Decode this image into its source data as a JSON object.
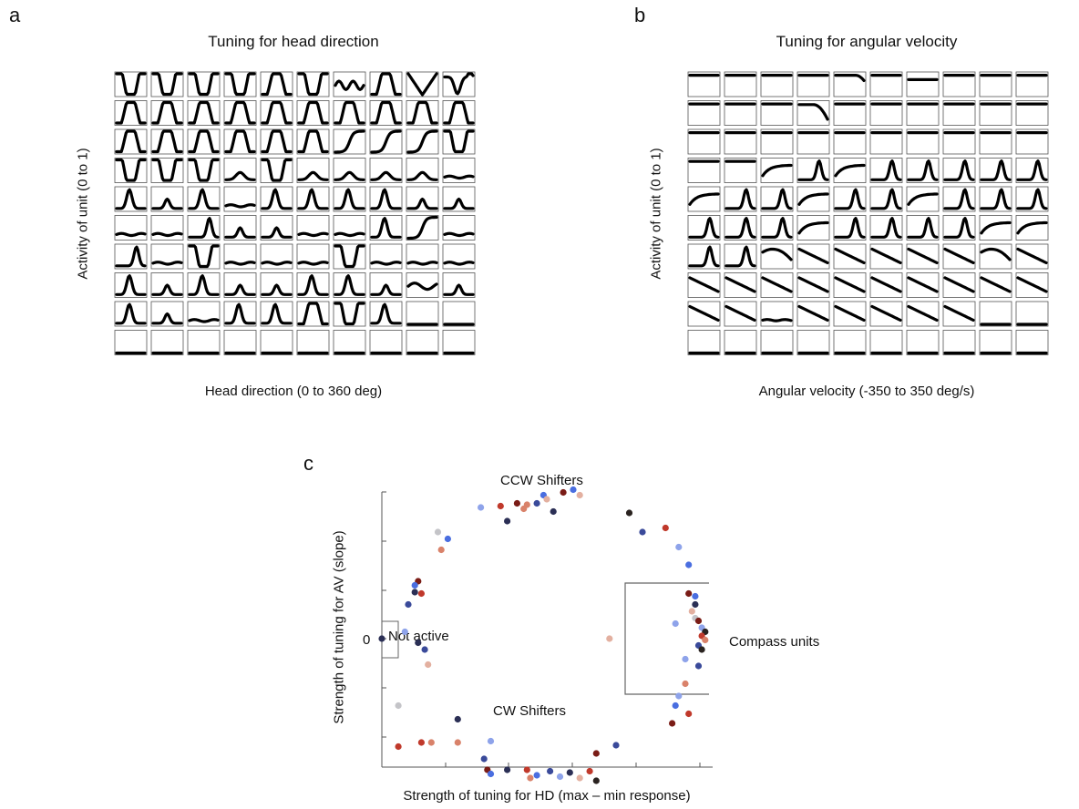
{
  "panel_a": {
    "letter": "a",
    "title": "Tuning for head direction",
    "xlabel": "Head direction (0 to 360 deg)",
    "ylabel": "Activity of unit (0 to 1)",
    "grid_rows": 10,
    "grid_cols": 10,
    "curves": [
      [
        "U",
        "U",
        "U",
        "U",
        "n",
        "U",
        "w",
        "n",
        "v",
        "vbump"
      ],
      [
        "n",
        "n",
        "n",
        "n",
        "n",
        "n",
        "n",
        "n",
        "n",
        "n"
      ],
      [
        "n",
        "n",
        "n",
        "n",
        "n",
        "n",
        "S",
        "S",
        "S",
        "U"
      ],
      [
        "U",
        "U",
        "U",
        "low",
        "U",
        "low",
        "low",
        "low",
        "low",
        "flat"
      ],
      [
        "peak",
        "small",
        "peak",
        "flat",
        "peak",
        "peak",
        "peak",
        "peak",
        "small",
        "small"
      ],
      [
        "flat",
        "flat",
        "rise",
        "small",
        "small",
        "flat",
        "flat",
        "peak",
        "S",
        "flat"
      ],
      [
        "rise",
        "flat",
        "U",
        "flat",
        "flat",
        "flat",
        "U",
        "flat",
        "flat",
        "flat"
      ],
      [
        "peak",
        "small",
        "peak",
        "small",
        "small",
        "peak",
        "peak",
        "small",
        "wave",
        "small"
      ],
      [
        "peak",
        "small",
        "flat",
        "peak",
        "peak",
        "n",
        "U",
        "peak",
        "empty",
        "empty"
      ],
      [
        "empty",
        "empty",
        "empty",
        "empty",
        "empty",
        "empty",
        "empty",
        "empty",
        "empty",
        "empty"
      ]
    ]
  },
  "panel_b": {
    "letter": "b",
    "title": "Tuning for angular velocity",
    "xlabel": "Angular velocity (-350 to 350 deg/s)",
    "ylabel": "Activity of unit (0 to 1)",
    "grid_rows": 10,
    "grid_cols": 10,
    "curves": [
      [
        "top",
        "top",
        "top",
        "top",
        "topdrop",
        "top",
        "toplow",
        "top",
        "top",
        "top"
      ],
      [
        "top",
        "top",
        "top",
        "topdrop2",
        "top",
        "top",
        "top",
        "top",
        "top",
        "top"
      ],
      [
        "top",
        "top",
        "top",
        "top",
        "top",
        "top",
        "top",
        "top",
        "top",
        "top"
      ],
      [
        "top",
        "top",
        "sat",
        "rise",
        "sat",
        "rise",
        "rise",
        "rise",
        "rise",
        "rise"
      ],
      [
        "sat",
        "rise",
        "rise",
        "sat",
        "rise",
        "rise",
        "sat",
        "rise",
        "rise",
        "rise"
      ],
      [
        "rise",
        "rise",
        "rise",
        "sat",
        "rise",
        "rise",
        "rise",
        "rise",
        "sat",
        "sat"
      ],
      [
        "rise",
        "rise",
        "hump",
        "fall",
        "fall",
        "fall",
        "fall",
        "fall",
        "hump",
        "fall"
      ],
      [
        "fall",
        "fall",
        "fall",
        "fall",
        "fall",
        "fall",
        "fall",
        "fall",
        "fall",
        "fall"
      ],
      [
        "fall",
        "fall",
        "flatmid",
        "fall",
        "fall",
        "fall",
        "fall",
        "fall",
        "empty",
        "empty"
      ],
      [
        "empty",
        "empty",
        "empty",
        "empty",
        "empty",
        "empty",
        "empty",
        "empty",
        "empty",
        "empty"
      ]
    ]
  },
  "panel_c": {
    "letter": "c",
    "xlabel": "Strength of tuning for HD (max – min response)",
    "ylabel": "Strength of tuning for AV (slope)",
    "zero_label": "0",
    "labels": {
      "ccw": "CCW Shifters",
      "cw": "CW Shifters",
      "compass": "Compass units",
      "inactive": "Not active"
    },
    "colors": {
      "dark": "#2b2f55",
      "navy": "#3a4a9a",
      "blue": "#4a6ee0",
      "lightblue": "#8ea3ea",
      "maroon": "#7a1c16",
      "red": "#c0392b",
      "salmon": "#d9826a",
      "peach": "#e3b0a0",
      "grey": "#c4c4c8",
      "black": "#2a2320"
    },
    "points": [
      {
        "x": 0,
        "y": 0,
        "c": "dark"
      },
      {
        "x": 0.17,
        "y": 0.78,
        "c": "grey"
      },
      {
        "x": 0.3,
        "y": 0.96,
        "c": "lightblue"
      },
      {
        "x": 0.36,
        "y": 0.97,
        "c": "red"
      },
      {
        "x": 0.41,
        "y": 0.99,
        "c": "maroon"
      },
      {
        "x": 0.44,
        "y": 0.98,
        "c": "salmon"
      },
      {
        "x": 0.47,
        "y": 0.99,
        "c": "navy"
      },
      {
        "x": 0.49,
        "y": 1.05,
        "c": "blue"
      },
      {
        "x": 0.5,
        "y": 1.02,
        "c": "peach"
      },
      {
        "x": 0.55,
        "y": 1.07,
        "c": "maroon"
      },
      {
        "x": 0.58,
        "y": 1.09,
        "c": "blue"
      },
      {
        "x": 0.6,
        "y": 1.05,
        "c": "peach"
      },
      {
        "x": 0.52,
        "y": 0.93,
        "c": "dark"
      },
      {
        "x": 0.43,
        "y": 0.95,
        "c": "salmon"
      },
      {
        "x": 0.38,
        "y": 0.86,
        "c": "dark"
      },
      {
        "x": 0.18,
        "y": 0.65,
        "c": "salmon"
      },
      {
        "x": 0.2,
        "y": 0.73,
        "c": "blue"
      },
      {
        "x": 0.11,
        "y": 0.42,
        "c": "maroon"
      },
      {
        "x": 0.1,
        "y": 0.39,
        "c": "blue"
      },
      {
        "x": 0.1,
        "y": 0.34,
        "c": "dark"
      },
      {
        "x": 0.12,
        "y": 0.33,
        "c": "red"
      },
      {
        "x": 0.08,
        "y": 0.25,
        "c": "navy"
      },
      {
        "x": 0.07,
        "y": 0.05,
        "c": "lightblue"
      },
      {
        "x": 0.11,
        "y": -0.03,
        "c": "dark"
      },
      {
        "x": 0.13,
        "y": -0.08,
        "c": "navy"
      },
      {
        "x": 0.14,
        "y": -0.19,
        "c": "peach"
      },
      {
        "x": 0.05,
        "y": -0.49,
        "c": "grey"
      },
      {
        "x": 0.05,
        "y": -0.79,
        "c": "red"
      },
      {
        "x": 0.12,
        "y": -0.76,
        "c": "red"
      },
      {
        "x": 0.15,
        "y": -0.76,
        "c": "salmon"
      },
      {
        "x": 0.23,
        "y": -0.76,
        "c": "salmon"
      },
      {
        "x": 0.23,
        "y": -0.59,
        "c": "dark"
      },
      {
        "x": 0.33,
        "y": -0.75,
        "c": "lightblue"
      },
      {
        "x": 0.31,
        "y": -0.88,
        "c": "navy"
      },
      {
        "x": 0.32,
        "y": -0.96,
        "c": "maroon"
      },
      {
        "x": 0.33,
        "y": -0.99,
        "c": "blue"
      },
      {
        "x": 0.38,
        "y": -0.96,
        "c": "dark"
      },
      {
        "x": 0.44,
        "y": -0.96,
        "c": "red"
      },
      {
        "x": 0.45,
        "y": -1.02,
        "c": "salmon"
      },
      {
        "x": 0.47,
        "y": -1.0,
        "c": "blue"
      },
      {
        "x": 0.51,
        "y": -0.97,
        "c": "navy"
      },
      {
        "x": 0.54,
        "y": -1.01,
        "c": "lightblue"
      },
      {
        "x": 0.57,
        "y": -0.98,
        "c": "dark"
      },
      {
        "x": 0.6,
        "y": -1.02,
        "c": "peach"
      },
      {
        "x": 0.63,
        "y": -0.97,
        "c": "red"
      },
      {
        "x": 0.65,
        "y": -1.04,
        "c": "black"
      },
      {
        "x": 0.65,
        "y": -0.84,
        "c": "maroon"
      },
      {
        "x": 0.71,
        "y": -0.78,
        "c": "navy"
      },
      {
        "x": 0.75,
        "y": 0.92,
        "c": "black"
      },
      {
        "x": 0.79,
        "y": 0.78,
        "c": "navy"
      },
      {
        "x": 0.86,
        "y": 0.81,
        "c": "red"
      },
      {
        "x": 0.9,
        "y": 0.67,
        "c": "lightblue"
      },
      {
        "x": 0.93,
        "y": 0.54,
        "c": "blue"
      },
      {
        "x": 0.69,
        "y": 0.0,
        "c": "peach"
      },
      {
        "x": 0.93,
        "y": 0.33,
        "c": "maroon"
      },
      {
        "x": 0.95,
        "y": 0.25,
        "c": "dark"
      },
      {
        "x": 0.94,
        "y": 0.2,
        "c": "peach"
      },
      {
        "x": 0.95,
        "y": 0.15,
        "c": "grey"
      },
      {
        "x": 0.96,
        "y": 0.13,
        "c": "maroon"
      },
      {
        "x": 0.97,
        "y": 0.08,
        "c": "lightblue"
      },
      {
        "x": 0.98,
        "y": 0.05,
        "c": "black"
      },
      {
        "x": 0.97,
        "y": 0.02,
        "c": "red"
      },
      {
        "x": 0.98,
        "y": -0.01,
        "c": "salmon"
      },
      {
        "x": 0.96,
        "y": -0.05,
        "c": "navy"
      },
      {
        "x": 0.97,
        "y": -0.08,
        "c": "black"
      },
      {
        "x": 0.95,
        "y": 0.31,
        "c": "blue"
      },
      {
        "x": 0.92,
        "y": -0.15,
        "c": "lightblue"
      },
      {
        "x": 0.96,
        "y": -0.2,
        "c": "navy"
      },
      {
        "x": 0.92,
        "y": -0.33,
        "c": "salmon"
      },
      {
        "x": 0.89,
        "y": -0.49,
        "c": "blue"
      },
      {
        "x": 0.9,
        "y": -0.42,
        "c": "lightblue"
      },
      {
        "x": 0.93,
        "y": -0.55,
        "c": "red"
      },
      {
        "x": 0.88,
        "y": -0.62,
        "c": "maroon"
      },
      {
        "x": 0.89,
        "y": 0.11,
        "c": "lightblue"
      }
    ]
  }
}
